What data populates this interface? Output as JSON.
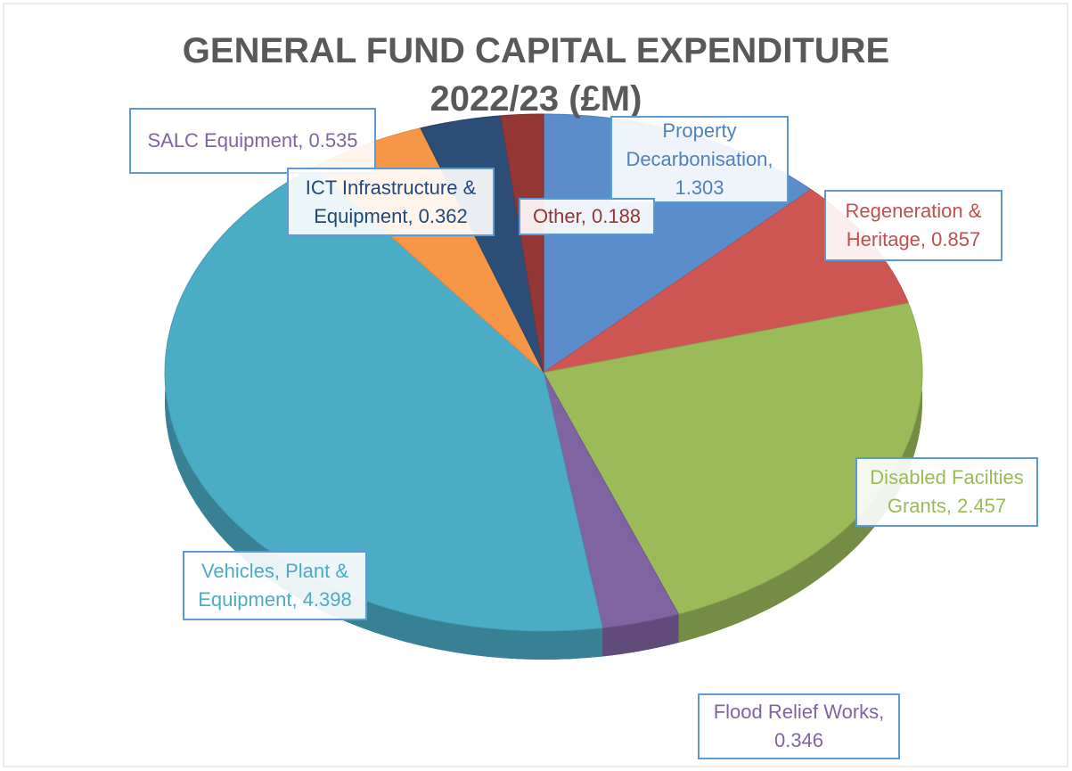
{
  "chart_data": {
    "type": "pie",
    "title": "GENERAL FUND CAPITAL EXPENDITURE 2022/23 (£M)",
    "categories": [
      "Property Decarbonisation",
      "Regeneration & Heritage",
      "Disabled Facilties Grants",
      "Flood Relief Works",
      "Vehicles, Plant & Equipment",
      "SALC Equipment",
      "ICT Infrastructure & Equipment",
      "Other"
    ],
    "values": [
      1.303,
      0.857,
      2.457,
      0.346,
      4.398,
      0.535,
      0.362,
      0.188
    ],
    "colors": [
      "#5b8ccc",
      "#cd5653",
      "#9bbb59",
      "#8064a2",
      "#4bacc6",
      "#f79646",
      "#2c4d75",
      "#943634"
    ],
    "label_colors": [
      "#4f81bd",
      "#c0504d",
      "#9bbb59",
      "#8064a2",
      "#4bacc6",
      "#8064a2",
      "#1f497d",
      "#943634"
    ],
    "label_separator": ", "
  }
}
